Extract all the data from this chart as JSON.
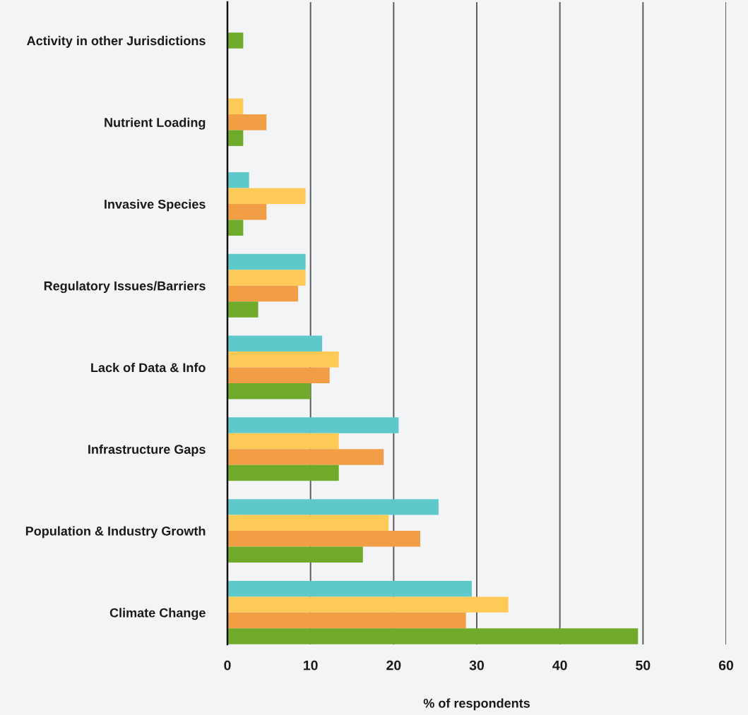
{
  "chart_data": {
    "type": "bar",
    "orientation": "horizontal",
    "xlabel": "% of respondents",
    "categories": [
      "Activity in other Jurisdictions",
      "Nutrient Loading",
      "Invasive Species",
      "Regulatory Issues/Barriers",
      "Lack of Data & Info",
      "Infrastructure Gaps",
      "Population & Industry Growth",
      "Climate Change"
    ],
    "series": [
      {
        "color": "#5fc8cb",
        "values": [
          null,
          null,
          2.6,
          9.4,
          11.4,
          20.6,
          25.4,
          29.4
        ]
      },
      {
        "color": "#fdca57",
        "values": [
          null,
          1.9,
          9.4,
          9.4,
          13.4,
          13.4,
          19.4,
          33.8
        ]
      },
      {
        "color": "#f29e47",
        "values": [
          null,
          4.7,
          4.7,
          8.5,
          12.3,
          18.8,
          23.2,
          28.7
        ]
      },
      {
        "color": "#6faa2a",
        "values": [
          1.9,
          1.9,
          1.9,
          3.7,
          10.0,
          13.4,
          16.3,
          49.4
        ]
      }
    ],
    "xlim": [
      0,
      60
    ],
    "xticks": [
      0,
      10,
      20,
      30,
      40,
      50,
      60
    ],
    "grid": "x"
  }
}
